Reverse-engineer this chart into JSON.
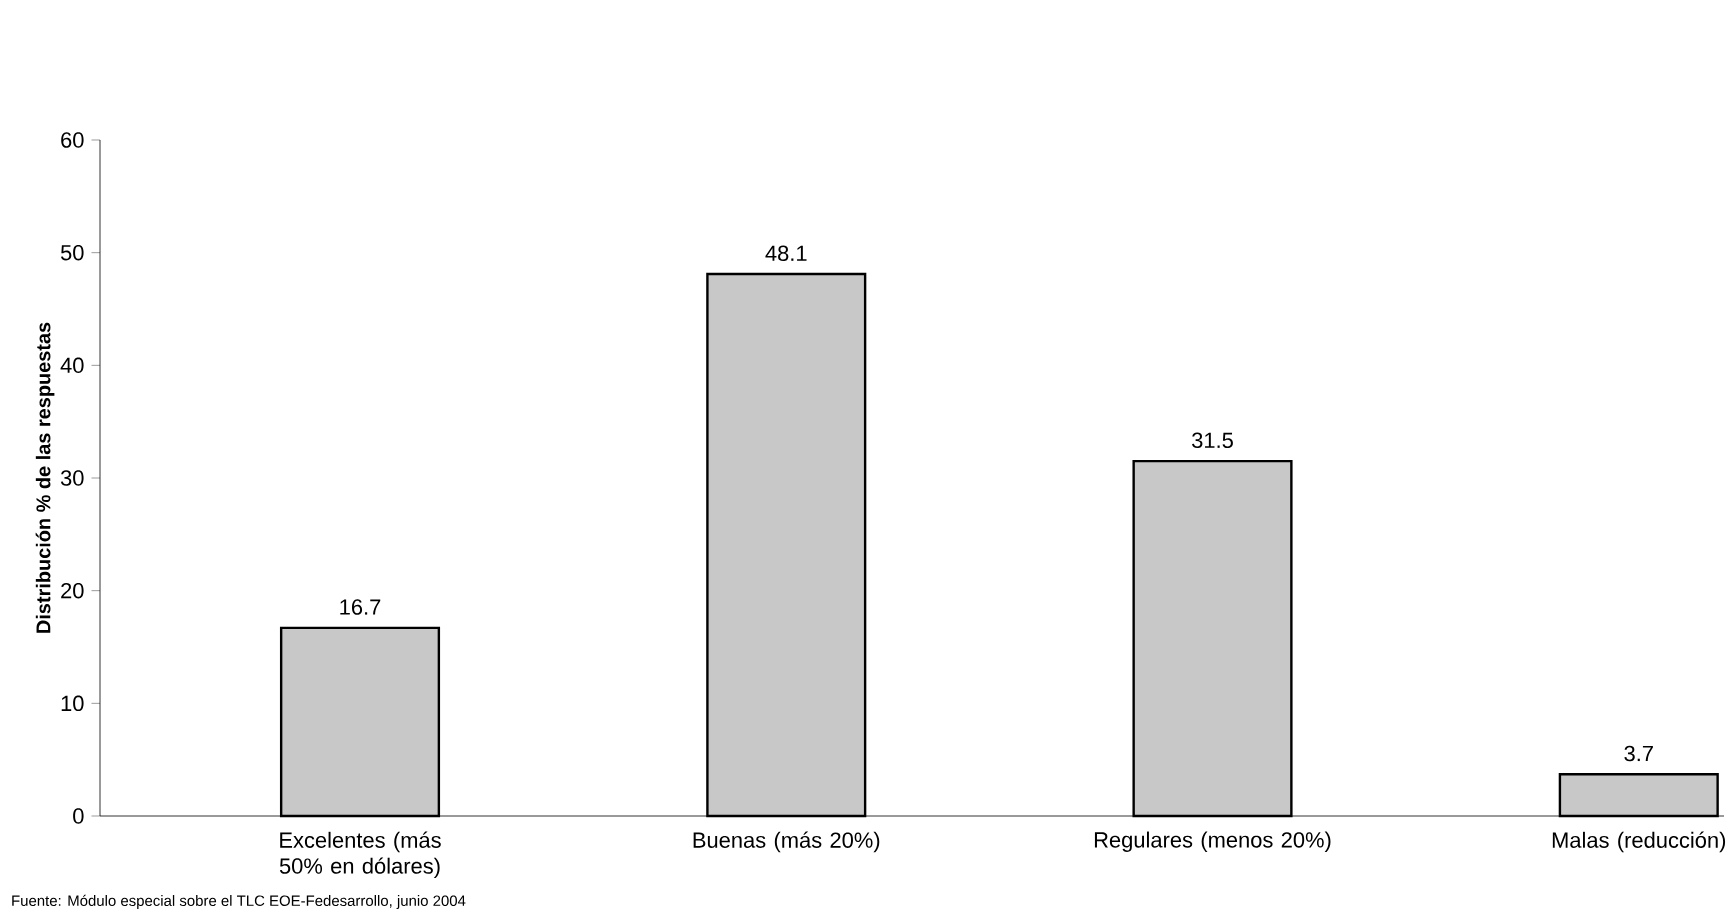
{
  "chart_data": {
    "type": "bar",
    "categories": [
      "Excelentes (más 50% en dólares)",
      "Buenas (más 20%)",
      "Regulares (menos 20%)",
      "Malas (reducción)"
    ],
    "values": [
      16.7,
      48.1,
      31.5,
      3.7
    ],
    "color": "#c8c8c8",
    "ylabel": "Distribución % de las respuestas",
    "ylim": [
      0,
      60
    ],
    "yticks": [
      0,
      10,
      20,
      30,
      40,
      50,
      60
    ],
    "data_labels": true,
    "grid": false,
    "annotations": [
      "Fuente: Módulo especial sobre el TLC EOE-Fedesarrollo, junio 2004"
    ]
  }
}
